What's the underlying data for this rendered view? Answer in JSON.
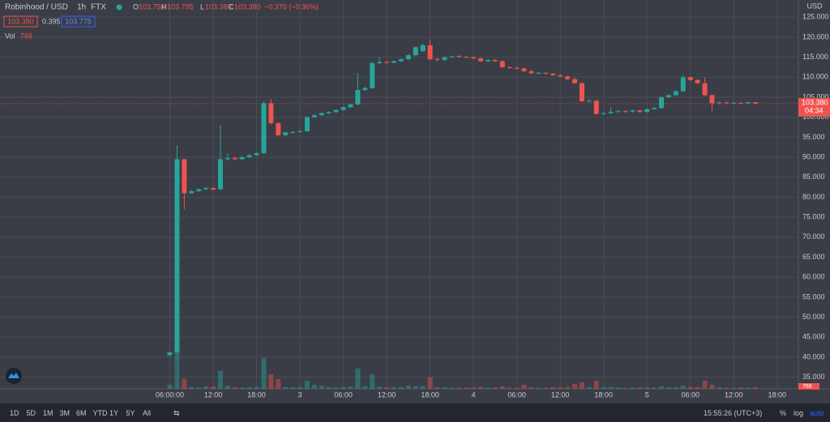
{
  "header": {
    "symbol": "Robinhood / USD",
    "interval": "1h",
    "exchange": "FTX",
    "o_label": "O",
    "o": "103.750",
    "h_label": "H",
    "h": "103.795",
    "l_label": "L",
    "l": "103.380",
    "c_label": "C",
    "c": "103.380",
    "change": "−0.370 (−0.36%)",
    "bid": "103.380",
    "spread": "0.395",
    "ask": "103.775",
    "vol_label": "Vol",
    "vol": "766"
  },
  "chart_data": {
    "type": "candlestick",
    "currency": "USD",
    "categories": [
      "06:00:00",
      null,
      null,
      null,
      null,
      null,
      "12:00",
      null,
      null,
      null,
      null,
      null,
      "18:00",
      null,
      null,
      null,
      null,
      null,
      "3",
      null,
      null,
      null,
      null,
      null,
      "06:00",
      null,
      null,
      null,
      null,
      null,
      "12:00",
      null,
      null,
      null,
      null,
      null,
      "18:00",
      null,
      null,
      null,
      null,
      null,
      "4",
      null,
      null,
      null,
      null,
      null,
      "06:00",
      null,
      null,
      null,
      null,
      null,
      "12:00",
      null,
      null,
      null,
      null,
      null,
      "18:00",
      null,
      null,
      null,
      null,
      null,
      "5",
      null,
      null,
      null,
      null,
      null,
      "06:00",
      null,
      null,
      null,
      null,
      null,
      "12:00",
      null,
      null,
      null,
      null,
      null,
      "18:00"
    ],
    "open": [
      40.5,
      41.2,
      89.5,
      81,
      81.5,
      82,
      82.3,
      82,
      89.5,
      89.8,
      89.5,
      90,
      90.5,
      91,
      103.5,
      98.5,
      95.5,
      96.2,
      96.3,
      96.5,
      100,
      100.5,
      101,
      101.3,
      101.8,
      102.5,
      103.2,
      106.8,
      107.3,
      113.5,
      113.8,
      113.6,
      114,
      114.5,
      115.5,
      116.5,
      118,
      114.5,
      114.3,
      115,
      115.3,
      115.1,
      115,
      114.7,
      114,
      114.3,
      114,
      112.5,
      112.3,
      112.2,
      111.5,
      111,
      111.1,
      110.9,
      110.5,
      110.2,
      109.5,
      108.5,
      104,
      104.1,
      100.8,
      101,
      101.3,
      101.5,
      101.4,
      101.7,
      101.3,
      102,
      102.3,
      105,
      105.5,
      106.5,
      110,
      109.3,
      108.5,
      105.5,
      103.5,
      103.7,
      103.5,
      103.6,
      103.45,
      103.75,
      null,
      null,
      null
    ],
    "high": [
      41.6,
      93,
      89.6,
      81.8,
      82.2,
      82.6,
      82.4,
      98,
      91,
      90.2,
      90.3,
      90.8,
      91.2,
      104,
      104.5,
      98.8,
      96.4,
      96.6,
      96.8,
      100.3,
      100.7,
      101.2,
      101.5,
      102,
      102.7,
      103.5,
      111,
      107.6,
      113.8,
      115,
      114.1,
      114.2,
      114.7,
      115.8,
      117.7,
      118.3,
      119.5,
      114.8,
      115.2,
      115.4,
      115.5,
      115.3,
      115.2,
      114.9,
      114.5,
      114.5,
      114.2,
      112.7,
      112.6,
      112.4,
      111.8,
      111.3,
      111.2,
      111,
      110.7,
      110.4,
      110,
      108.7,
      104.5,
      104.3,
      101.3,
      102.5,
      101.8,
      101.8,
      101.9,
      101.8,
      102.2,
      102.6,
      105.2,
      105.7,
      106.7,
      110.5,
      110.1,
      109.5,
      110,
      105.7,
      103.9,
      103.8,
      103.8,
      103.7,
      103.8,
      103.795,
      null,
      null,
      null
    ],
    "low": [
      40.2,
      41,
      77,
      80.8,
      81.3,
      81.7,
      81.7,
      81.8,
      89.2,
      89.3,
      89.4,
      89.8,
      90.3,
      90.8,
      98.2,
      95.2,
      95.3,
      95.8,
      96.1,
      96.3,
      99.8,
      100.3,
      100.8,
      101.1,
      101.6,
      102.3,
      103,
      106.5,
      107,
      113.3,
      113.4,
      113.5,
      113.8,
      114.3,
      115.3,
      116.3,
      114.3,
      114,
      114.1,
      114.8,
      114.9,
      114.8,
      114.5,
      113.8,
      113.8,
      113.8,
      112.3,
      112.1,
      112,
      111.3,
      110.8,
      110.8,
      110.7,
      110.3,
      110,
      109.3,
      108.3,
      103.8,
      103.7,
      100.6,
      100.5,
      100.8,
      101.1,
      101.2,
      101.2,
      101.1,
      101.1,
      101.8,
      102.1,
      104.8,
      105.3,
      106.2,
      109.1,
      108.3,
      105.3,
      101.5,
      103.3,
      103.3,
      103.4,
      103.3,
      103.4,
      103.38,
      null,
      null,
      null
    ],
    "close": [
      41.2,
      89.5,
      81,
      81.5,
      82,
      82.3,
      81.9,
      89.5,
      89.8,
      89.5,
      90,
      90.5,
      91,
      103.5,
      98.5,
      95.5,
      96.2,
      96.3,
      96.5,
      100,
      100.5,
      101,
      101.3,
      101.8,
      102.5,
      103.2,
      106.8,
      107.3,
      113.5,
      113.8,
      113.6,
      114,
      114.5,
      115.5,
      117.5,
      118,
      114.5,
      114.3,
      115,
      115.2,
      115.1,
      115,
      114.7,
      114,
      114.3,
      114,
      112.5,
      112.3,
      112.2,
      111.5,
      111,
      111.1,
      110.9,
      110.5,
      110.2,
      109.5,
      108.5,
      104,
      104.1,
      100.8,
      101,
      101.3,
      101.5,
      101.4,
      101.7,
      101.3,
      102,
      102.3,
      105,
      105.5,
      106.5,
      110,
      109.3,
      108.5,
      105.5,
      103.5,
      103.7,
      103.5,
      103.6,
      103.45,
      103.75,
      103.38,
      null,
      null,
      null
    ],
    "volume": [
      1900,
      19000,
      4600,
      800,
      700,
      1200,
      1100,
      8400,
      1500,
      700,
      600,
      800,
      900,
      14500,
      6900,
      4600,
      900,
      700,
      800,
      3800,
      1900,
      1500,
      800,
      700,
      900,
      1100,
      9600,
      1200,
      6900,
      1000,
      800,
      700,
      900,
      1500,
      1200,
      1300,
      5400,
      700,
      800,
      600,
      500,
      500,
      700,
      900,
      500,
      600,
      1200,
      500,
      500,
      1900,
      700,
      500,
      500,
      800,
      700,
      900,
      2300,
      3100,
      800,
      3800,
      700,
      900,
      600,
      500,
      500,
      600,
      700,
      600,
      1200,
      700,
      800,
      1500,
      900,
      700,
      3800,
      1900,
      700,
      600,
      500,
      600,
      600,
      766,
      null,
      null,
      null
    ],
    "up_color": "#26a69a",
    "down_color": "#ef5350",
    "log_scale": false,
    "grid": true,
    "ylim": [
      32.1,
      129.3
    ],
    "yticks": [
      {
        "value": 35,
        "label": "35.000"
      },
      {
        "value": 40,
        "label": "40.000"
      },
      {
        "value": 45,
        "label": "45.000"
      },
      {
        "value": 50,
        "label": "50.000"
      },
      {
        "value": 55,
        "label": "55.000"
      },
      {
        "value": 60,
        "label": "60.000"
      },
      {
        "value": 65,
        "label": "65.000"
      },
      {
        "value": 70,
        "label": "70.000"
      },
      {
        "value": 75,
        "label": "75.000"
      },
      {
        "value": 80,
        "label": "80.000"
      },
      {
        "value": 85,
        "label": "85.000"
      },
      {
        "value": 90,
        "label": "90.000"
      },
      {
        "value": 95,
        "label": "95.000"
      },
      {
        "value": 100,
        "label": "100.000"
      },
      {
        "value": 105,
        "label": "105.000"
      },
      {
        "value": 110,
        "label": "110.000"
      },
      {
        "value": 115,
        "label": "115.000"
      },
      {
        "value": 120,
        "label": "120.000"
      },
      {
        "value": 125,
        "label": "125.000"
      }
    ],
    "last_price": {
      "value": 103.38,
      "label": "103.380"
    },
    "countdown": "04:34"
  },
  "toolbar": {
    "ranges": [
      "1D",
      "5D",
      "1M",
      "3M",
      "6M",
      "YTD",
      "1Y",
      "5Y",
      "All"
    ],
    "clock": "15:55:26 (UTC+3)",
    "percent": "%",
    "log": "log",
    "auto": "auto"
  }
}
